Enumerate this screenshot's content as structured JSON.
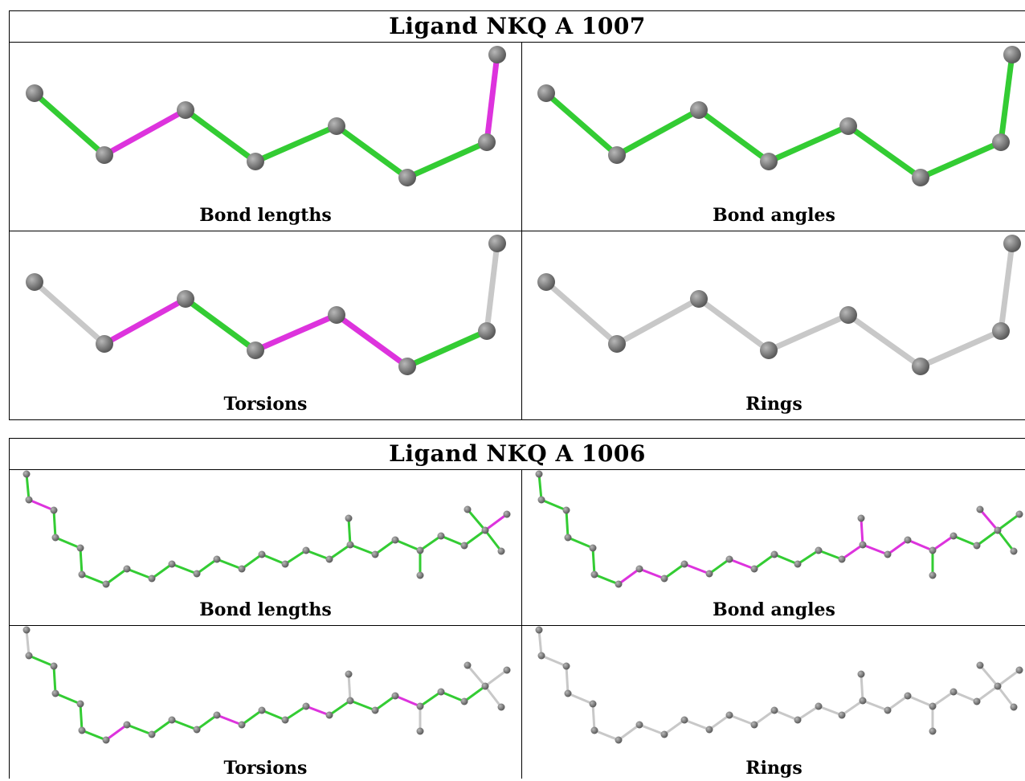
{
  "ligands": [
    {
      "title": "Ligand NKQ A 1007",
      "panels": [
        {
          "caption": "Bond lengths",
          "bonds": [
            "green",
            "magenta",
            "green",
            "green",
            "green",
            "green",
            "magenta"
          ]
        },
        {
          "caption": "Bond angles",
          "bonds": [
            "green",
            "green",
            "green",
            "green",
            "green",
            "green",
            "green"
          ]
        },
        {
          "caption": "Torsions",
          "bonds": [
            "gray",
            "magenta",
            "green",
            "magenta",
            "magenta",
            "green",
            "gray"
          ]
        },
        {
          "caption": "Rings",
          "bonds": [
            "gray",
            "gray",
            "gray",
            "gray",
            "gray",
            "gray",
            "gray"
          ]
        }
      ]
    },
    {
      "title": "Ligand NKQ A 1006",
      "panels": [
        {
          "caption": "Bond lengths",
          "scheme": "lengths"
        },
        {
          "caption": "Bond angles",
          "scheme": "angles"
        },
        {
          "caption": "Torsions",
          "scheme": "torsions"
        },
        {
          "caption": "Rings",
          "scheme": "rings"
        }
      ]
    }
  ],
  "colors": {
    "green": "#33cc33",
    "magenta": "#dd33dd",
    "gray": "#c8c8c8",
    "atom": "#707070"
  }
}
